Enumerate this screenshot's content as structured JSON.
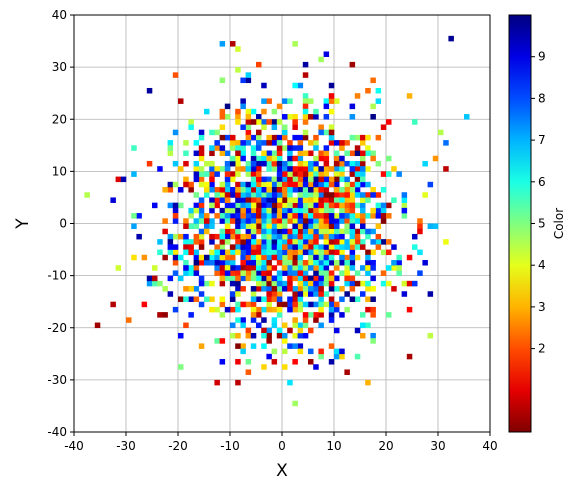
{
  "chart_data": {
    "type": "heatmap",
    "title": "",
    "xlabel": "X",
    "ylabel": "Y",
    "xlim": [
      -40,
      40
    ],
    "ylim": [
      -40,
      40
    ],
    "xticks": [
      "-40",
      "-30",
      "-20",
      "-10",
      "0",
      "10",
      "20",
      "30",
      "40"
    ],
    "yticks": [
      "-40",
      "-30",
      "-20",
      "-10",
      "0",
      "10",
      "20",
      "30",
      "40"
    ],
    "grid": true,
    "colormap": "jet_r",
    "colorbar": {
      "label": "Color",
      "range": [
        0,
        10
      ],
      "ticks": [
        "2",
        "3",
        "4",
        "5",
        "6",
        "7",
        "8",
        "9"
      ]
    },
    "bin_size": 1,
    "distribution": {
      "shape": "2D Gaussian cloud of randomly colored bins",
      "center": [
        0,
        0
      ],
      "std": [
        10,
        10
      ],
      "value_range": [
        0,
        10
      ]
    },
    "outlier_cells": [
      {
        "x": 32,
        "y": 35,
        "value": 9.8
      },
      {
        "x": 35,
        "y": 20,
        "value": 6.8
      },
      {
        "x": -38,
        "y": 5,
        "value": 4.5
      },
      {
        "x": -36,
        "y": -20,
        "value": 0.3
      },
      {
        "x": -33,
        "y": -16,
        "value": 0.5
      },
      {
        "x": -31,
        "y": 8,
        "value": 9.5
      },
      {
        "x": -26,
        "y": 25,
        "value": 9.7
      },
      {
        "x": -12,
        "y": 34,
        "value": 7.2
      },
      {
        "x": -9,
        "y": 33,
        "value": 4.2
      },
      {
        "x": 2,
        "y": 34,
        "value": 4.6
      },
      {
        "x": 13,
        "y": 30,
        "value": 0.3
      },
      {
        "x": 28,
        "y": -22,
        "value": 4.4
      },
      {
        "x": 16,
        "y": -31,
        "value": 3.0
      },
      {
        "x": 1,
        "y": -31,
        "value": 6.5
      },
      {
        "x": 12,
        "y": -29,
        "value": 0.4
      },
      {
        "x": 30,
        "y": 17,
        "value": 4.5
      },
      {
        "x": 31,
        "y": 10,
        "value": 0.6
      },
      {
        "x": 24,
        "y": -26,
        "value": 0.4
      },
      {
        "x": -20,
        "y": -28,
        "value": 5.0
      },
      {
        "x": 28,
        "y": -14,
        "value": 9.6
      }
    ]
  }
}
